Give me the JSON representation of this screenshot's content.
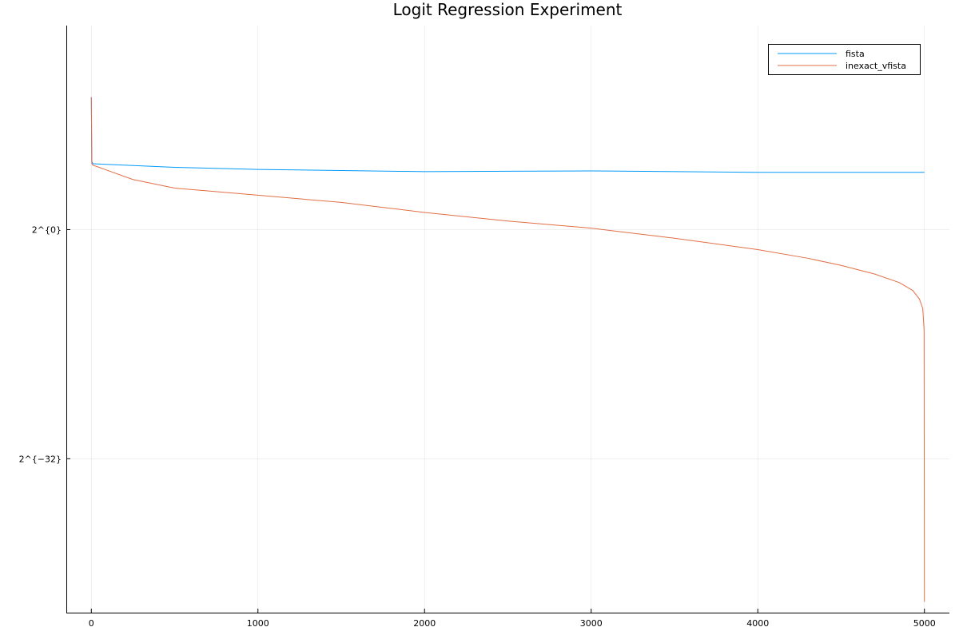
{
  "chart_data": {
    "type": "line",
    "title": "Logit Regression Experiment",
    "xlabel": "",
    "ylabel": "",
    "y_scale": "log2",
    "xlim": [
      -150,
      5150
    ],
    "ylim_log2": [
      -53.5,
      28.5
    ],
    "grid": true,
    "legend_placement": "top-right",
    "x_ticks": [
      0,
      1000,
      2000,
      3000,
      4000,
      5000
    ],
    "x_tick_labels": [
      "0",
      "1000",
      "2000",
      "3000",
      "4000",
      "5000"
    ],
    "y_ticks_log2": [
      -32,
      0
    ],
    "y_tick_labels": [
      "2^{−32}",
      "2^{0}"
    ],
    "series": [
      {
        "name": "fista",
        "color": "#009AF9",
        "points": [
          [
            0,
            18.5
          ],
          [
            3,
            9.5
          ],
          [
            10,
            9.2
          ],
          [
            500,
            8.7
          ],
          [
            1000,
            8.4
          ],
          [
            2000,
            8.1
          ],
          [
            3000,
            8.2
          ],
          [
            4000,
            8.0
          ],
          [
            5000,
            8.0
          ]
        ]
      },
      {
        "name": "inexact_vfista",
        "color": "#E26F46",
        "points": [
          [
            0,
            18.5
          ],
          [
            3,
            9.2
          ],
          [
            10,
            9.0
          ],
          [
            250,
            7.0
          ],
          [
            500,
            5.8
          ],
          [
            1000,
            4.8
          ],
          [
            1500,
            3.8
          ],
          [
            2000,
            2.4
          ],
          [
            2500,
            1.2
          ],
          [
            3000,
            0.2
          ],
          [
            3500,
            -1.2
          ],
          [
            4000,
            -2.8
          ],
          [
            4300,
            -4.0
          ],
          [
            4500,
            -5.0
          ],
          [
            4700,
            -6.2
          ],
          [
            4850,
            -7.4
          ],
          [
            4930,
            -8.5
          ],
          [
            4970,
            -9.7
          ],
          [
            4990,
            -11.0
          ],
          [
            4998,
            -14.0
          ],
          [
            5000,
            -52.0
          ]
        ]
      }
    ]
  }
}
